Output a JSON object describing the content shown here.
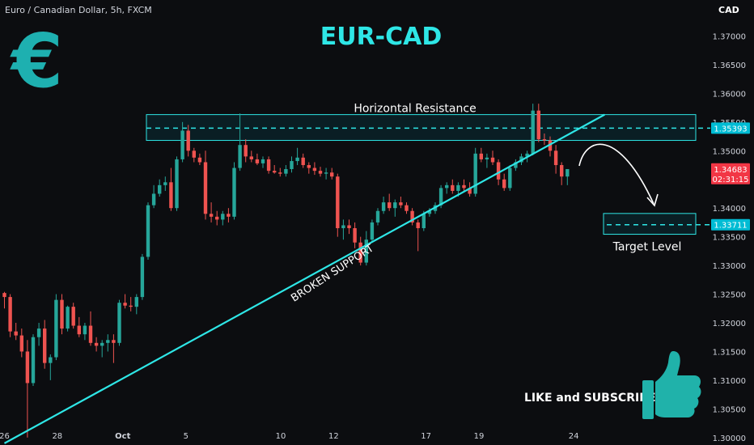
{
  "header": {
    "symbol": "Euro / Canadian Dollar, 5h, FXCM",
    "currency": "CAD",
    "title": "EUR-CAD"
  },
  "icons": {
    "logo": "euro-sign-icon",
    "cta": "thumbs-up-icon"
  },
  "colors": {
    "background": "#0c0d10",
    "accent": "#2ee6e6",
    "up_candle": "#26a69a",
    "down_candle": "#ef5350",
    "label_bg": "#00bcd4"
  },
  "chart_data": {
    "type": "candlestick",
    "y_axis": {
      "ylim": [
        1.2975,
        1.3755
      ],
      "ticks": [
        "1.37000",
        "1.36500",
        "1.36000",
        "1.35500",
        "1.35000",
        "1.34500",
        "1.34000",
        "1.33500",
        "1.33000",
        "1.32500",
        "1.32000",
        "1.31500",
        "1.31000",
        "1.30500",
        "1.30000"
      ]
    },
    "x_axis": {
      "ticks": [
        {
          "label": "26",
          "x": 0
        },
        {
          "label": "28",
          "x": 9.2
        },
        {
          "label": "Oct",
          "x": 20.6
        },
        {
          "label": "5",
          "x": 31.6
        },
        {
          "label": "10",
          "x": 48.1
        },
        {
          "label": "12",
          "x": 57.3
        },
        {
          "label": "17",
          "x": 73.4
        },
        {
          "label": "19",
          "x": 82.6
        },
        {
          "label": "24",
          "x": 99.1
        }
      ]
    },
    "candles": [
      [
        1.3252,
        1.3254,
        1.3225,
        1.3245
      ],
      [
        1.3245,
        1.325,
        1.3175,
        1.3185
      ],
      [
        1.3185,
        1.32,
        1.317,
        1.3178
      ],
      [
        1.3178,
        1.319,
        1.314,
        1.315
      ],
      [
        1.315,
        1.317,
        1.3,
        1.3095
      ],
      [
        1.3095,
        1.318,
        1.309,
        1.3175
      ],
      [
        1.3175,
        1.32,
        1.316,
        1.319
      ],
      [
        1.319,
        1.3205,
        1.312,
        1.313
      ],
      [
        1.313,
        1.3145,
        1.31,
        1.314
      ],
      [
        1.314,
        1.325,
        1.3135,
        1.324
      ],
      [
        1.324,
        1.325,
        1.318,
        1.319
      ],
      [
        1.319,
        1.323,
        1.3185,
        1.3228
      ],
      [
        1.3228,
        1.3235,
        1.319,
        1.3195
      ],
      [
        1.3195,
        1.321,
        1.3175,
        1.318
      ],
      [
        1.318,
        1.32,
        1.317,
        1.3195
      ],
      [
        1.3195,
        1.322,
        1.316,
        1.3165
      ],
      [
        1.3165,
        1.3175,
        1.315,
        1.316
      ],
      [
        1.316,
        1.317,
        1.314,
        1.3165
      ],
      [
        1.3165,
        1.318,
        1.315,
        1.317
      ],
      [
        1.317,
        1.318,
        1.313,
        1.3165
      ],
      [
        1.3165,
        1.324,
        1.316,
        1.3235
      ],
      [
        1.3235,
        1.325,
        1.3225,
        1.323
      ],
      [
        1.323,
        1.3245,
        1.322,
        1.3228
      ],
      [
        1.3228,
        1.325,
        1.3215,
        1.3245
      ],
      [
        1.3245,
        1.332,
        1.324,
        1.3315
      ],
      [
        1.3315,
        1.341,
        1.331,
        1.3405
      ],
      [
        1.3405,
        1.344,
        1.34,
        1.3425
      ],
      [
        1.3425,
        1.345,
        1.342,
        1.344
      ],
      [
        1.344,
        1.3455,
        1.343,
        1.3445
      ],
      [
        1.3445,
        1.347,
        1.3395,
        1.34
      ],
      [
        1.34,
        1.349,
        1.3395,
        1.3485
      ],
      [
        1.3485,
        1.355,
        1.348,
        1.3535
      ],
      [
        1.3535,
        1.3545,
        1.349,
        1.35
      ],
      [
        1.35,
        1.3505,
        1.348,
        1.3488
      ],
      [
        1.3488,
        1.3495,
        1.3475,
        1.348
      ],
      [
        1.348,
        1.35,
        1.338,
        1.339
      ],
      [
        1.339,
        1.341,
        1.3375,
        1.3385
      ],
      [
        1.3385,
        1.3395,
        1.337,
        1.338
      ],
      [
        1.338,
        1.3395,
        1.337,
        1.339
      ],
      [
        1.339,
        1.34,
        1.3375,
        1.3385
      ],
      [
        1.3385,
        1.348,
        1.338,
        1.347
      ],
      [
        1.347,
        1.3565,
        1.3465,
        1.351
      ],
      [
        1.351,
        1.352,
        1.348,
        1.349
      ],
      [
        1.349,
        1.35,
        1.348,
        1.3485
      ],
      [
        1.3485,
        1.3495,
        1.3475,
        1.3478
      ],
      [
        1.3478,
        1.349,
        1.347,
        1.3485
      ],
      [
        1.3485,
        1.349,
        1.346,
        1.3465
      ],
      [
        1.3465,
        1.3475,
        1.346,
        1.3462
      ],
      [
        1.3462,
        1.347,
        1.3455,
        1.346
      ],
      [
        1.346,
        1.3475,
        1.3455,
        1.3468
      ],
      [
        1.3468,
        1.349,
        1.3462,
        1.3482
      ],
      [
        1.3482,
        1.3505,
        1.3475,
        1.3488
      ],
      [
        1.3488,
        1.3495,
        1.347,
        1.3475
      ],
      [
        1.3475,
        1.348,
        1.346,
        1.347
      ],
      [
        1.347,
        1.348,
        1.3458,
        1.3465
      ],
      [
        1.3465,
        1.3472,
        1.3455,
        1.346
      ],
      [
        1.346,
        1.347,
        1.345,
        1.3462
      ],
      [
        1.3462,
        1.347,
        1.345,
        1.3455
      ],
      [
        1.3455,
        1.346,
        1.335,
        1.3365
      ],
      [
        1.3365,
        1.338,
        1.3345,
        1.337
      ],
      [
        1.337,
        1.338,
        1.3355,
        1.3365
      ],
      [
        1.3365,
        1.3375,
        1.333,
        1.334
      ],
      [
        1.334,
        1.335,
        1.33,
        1.3305
      ],
      [
        1.3305,
        1.336,
        1.33,
        1.3345
      ],
      [
        1.3345,
        1.338,
        1.334,
        1.3375
      ],
      [
        1.3375,
        1.34,
        1.337,
        1.3395
      ],
      [
        1.3395,
        1.342,
        1.339,
        1.341
      ],
      [
        1.341,
        1.3425,
        1.3395,
        1.34
      ],
      [
        1.34,
        1.3415,
        1.3385,
        1.341
      ],
      [
        1.341,
        1.342,
        1.34,
        1.3405
      ],
      [
        1.3405,
        1.341,
        1.339,
        1.3395
      ],
      [
        1.3395,
        1.34,
        1.337,
        1.3375
      ],
      [
        1.3375,
        1.338,
        1.3325,
        1.3365
      ],
      [
        1.3365,
        1.3395,
        1.336,
        1.339
      ],
      [
        1.339,
        1.34,
        1.3385,
        1.3395
      ],
      [
        1.3395,
        1.341,
        1.339,
        1.3405
      ],
      [
        1.3405,
        1.344,
        1.34,
        1.3435
      ],
      [
        1.3435,
        1.3445,
        1.3425,
        1.344
      ],
      [
        1.344,
        1.345,
        1.3425,
        1.343
      ],
      [
        1.343,
        1.3445,
        1.342,
        1.344
      ],
      [
        1.344,
        1.345,
        1.343,
        1.3435
      ],
      [
        1.3435,
        1.3445,
        1.342,
        1.3425
      ],
      [
        1.3425,
        1.3505,
        1.342,
        1.3495
      ],
      [
        1.3495,
        1.3505,
        1.348,
        1.3485
      ],
      [
        1.3485,
        1.3495,
        1.347,
        1.3488
      ],
      [
        1.3488,
        1.35,
        1.3475,
        1.348
      ],
      [
        1.348,
        1.3485,
        1.344,
        1.345
      ],
      [
        1.345,
        1.346,
        1.343,
        1.3435
      ],
      [
        1.3435,
        1.3475,
        1.343,
        1.347
      ],
      [
        1.347,
        1.3485,
        1.3465,
        1.348
      ],
      [
        1.348,
        1.3495,
        1.3475,
        1.349
      ],
      [
        1.349,
        1.35,
        1.348,
        1.3495
      ],
      [
        1.3495,
        1.3582,
        1.3492,
        1.357
      ],
      [
        1.357,
        1.3582,
        1.3515,
        1.352
      ],
      [
        1.352,
        1.353,
        1.351,
        1.3518
      ],
      [
        1.3518,
        1.3525,
        1.349,
        1.35
      ],
      [
        1.35,
        1.351,
        1.346,
        1.3475
      ],
      [
        1.3475,
        1.348,
        1.344,
        1.3455
      ],
      [
        1.3455,
        1.3465,
        1.344,
        1.3468
      ]
    ],
    "annotations": {
      "resistance_label": "Horizontal Resistance",
      "resistance_zone": [
        1.3518,
        1.3563
      ],
      "resistance_level": 1.35393,
      "support_label": "BROKEN SUPPORT",
      "support_line": [
        [
          0,
          1.299
        ],
        [
          104.5,
          1.3563
        ]
      ],
      "target_label": "Target Level",
      "target_zone": [
        1.336,
        1.3385
      ],
      "target_level": 1.33711
    },
    "price_labels": {
      "resistance": "1.35393",
      "current": "1.34683",
      "countdown": "02:31:15",
      "target": "1.33711"
    },
    "current_price": 1.34683
  },
  "cta": {
    "text": "LIKE and SUBSCRIBE"
  }
}
